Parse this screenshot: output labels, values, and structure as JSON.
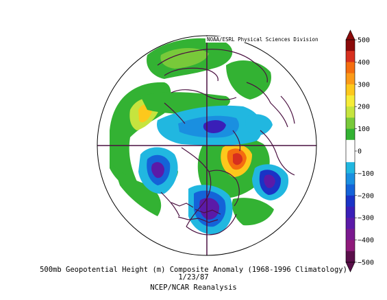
{
  "map": {
    "credit": "NOAA/ESRL Physical Sciences Division",
    "title_line1": "500mb Geopotential Height (m) Composite Anomaly (1968-1996 Climatology)",
    "title_line2": "1/23/87",
    "title_line3": "NCEP/NCAR Reanalysis",
    "projection": "north-polar-stereographic"
  },
  "colorbar": {
    "labels": [
      "500",
      "400",
      "300",
      "200",
      "100",
      "0",
      "−100",
      "−200",
      "−300",
      "−400",
      "−500"
    ],
    "colors": [
      "#8b0a0a",
      "#d7301f",
      "#f46d0f",
      "#fb9a18",
      "#fdc81c",
      "#f6ec38",
      "#c6e43e",
      "#78c93a",
      "#33b233",
      "#ffffff",
      "#ffffff",
      "#21b7e0",
      "#1a8fe0",
      "#1463d8",
      "#1a33c6",
      "#3a1fb8",
      "#5b1aa8",
      "#7a198f",
      "#8f1a7a",
      "#5a0f4a"
    ]
  }
}
